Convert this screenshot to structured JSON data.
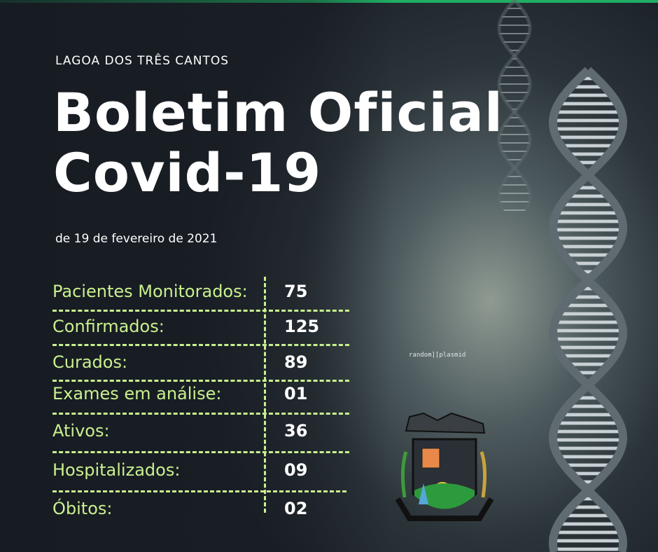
{
  "header": {
    "town": "LAGOA DOS TRÊS CANTOS",
    "title_line1": "Boletim Oficial",
    "title_line2": "Covid-19",
    "date": "de 19 de fevereiro de 2021"
  },
  "stats": [
    {
      "label": "Pacientes Monitorados:",
      "value": "75"
    },
    {
      "label": "Confirmados:",
      "value": "125"
    },
    {
      "label": "Curados:",
      "value": "89"
    },
    {
      "label": "Exames em análise:",
      "value": "01"
    },
    {
      "label": "Ativos:",
      "value": "36"
    },
    {
      "label": "Hospitalizados:",
      "value": "09"
    },
    {
      "label": "Óbitos:",
      "value": "02"
    }
  ],
  "background_text": "random][plasmid",
  "colors": {
    "accent": "#c9f08e",
    "top_bar": "#1fae63",
    "text": "#ffffff"
  }
}
